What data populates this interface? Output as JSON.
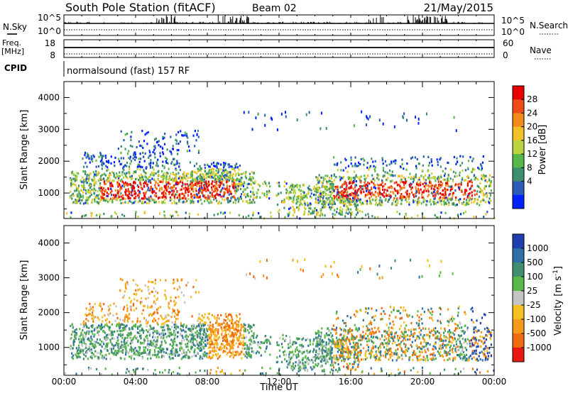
{
  "header": {
    "title": "South Pole Station (fitACF)",
    "beam": "Beam 02",
    "date": "21/May/2015"
  },
  "side_labels": {
    "nsky": "N.Sky",
    "nsearch": "N.Search",
    "freq_top": "Freq.",
    "freq_unit": "[MHz]",
    "nave": "Nave",
    "cpid": "CPID"
  },
  "noise_panel": {
    "left_ticks": [
      "10^5",
      "10^0"
    ],
    "right_ticks": [
      "10^5",
      "10^0"
    ]
  },
  "freq_panel": {
    "left_ticks": [
      "18",
      "8"
    ],
    "right_ticks": [
      "60",
      "0"
    ]
  },
  "cpid_text": "normalsound (fast) 157 RF",
  "colors": {
    "frame": "#000000",
    "background": "#ffffff"
  },
  "chart_data": [
    {
      "type": "heatmap",
      "name": "power",
      "ylabel": "Slant Range [km]",
      "yticks": [
        1000,
        2000,
        3000,
        4000
      ],
      "ylim": [
        200,
        4500
      ],
      "xticks": [
        "00:00",
        "04:00",
        "08:00",
        "12:00",
        "16:00",
        "20:00",
        "00:00"
      ],
      "colorbar": {
        "label": "Power [dB]",
        "ticks": [
          "4",
          "8",
          "12",
          "16",
          "20",
          "24",
          "28"
        ],
        "colors": [
          "#0022ff",
          "#2b5ab8",
          "#3c8f6e",
          "#57b74a",
          "#b9d43c",
          "#f2c12a",
          "#f28a1c",
          "#ee4b17",
          "#e60000"
        ]
      }
    },
    {
      "type": "heatmap",
      "name": "velocity",
      "ylabel": "Slant Range [km]",
      "yticks": [
        1000,
        2000,
        3000,
        4000
      ],
      "ylim": [
        200,
        4500
      ],
      "xticks": [
        "00:00",
        "04:00",
        "08:00",
        "12:00",
        "16:00",
        "20:00",
        "00:00"
      ],
      "xlabel": "Time UT",
      "colorbar": {
        "label": "Velocity [m s",
        "label_sup": "-1",
        "label_end": "]",
        "ticks": [
          "1000",
          "500",
          "100",
          "25",
          "-25",
          "-100",
          "-500",
          "-1000"
        ],
        "colors": [
          "#1f3fb0",
          "#2f6fa8",
          "#3f8f6f",
          "#5ab848",
          "#c4c4c4",
          "#f5c022",
          "#f59a1a",
          "#ef6a12",
          "#e61a10"
        ]
      }
    }
  ]
}
